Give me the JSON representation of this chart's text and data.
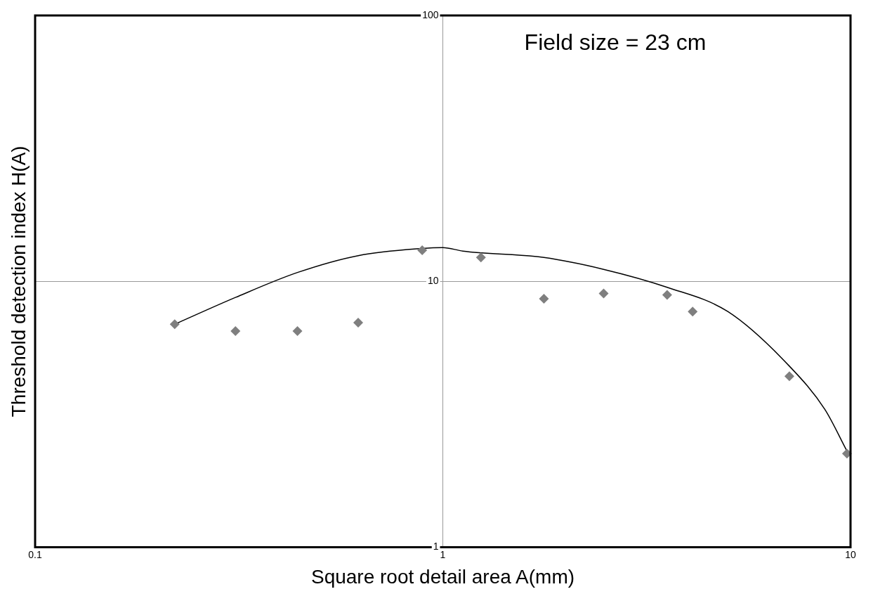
{
  "chart_data": {
    "type": "scatter",
    "xlabel": "Square root detail area A(mm)",
    "ylabel": "Threshold detection index H(A)",
    "annotations": [
      "Field size = 23 cm"
    ],
    "log": "xy",
    "xlim": [
      0.1,
      10
    ],
    "ylim": [
      1,
      100
    ],
    "xticks": [
      0.1,
      1,
      10
    ],
    "yticks": [
      1,
      10,
      100
    ],
    "grid": true,
    "legend": false,
    "marker": "diamond",
    "series": [
      {
        "type": "scatter",
        "color": "#7f7f7f",
        "x": [
          0.22,
          0.31,
          0.44,
          0.62,
          0.89,
          1.24,
          1.77,
          2.48,
          3.55,
          4.1,
          7.08,
          9.8
        ],
        "values": [
          6.9,
          6.5,
          6.5,
          7.0,
          13.1,
          12.3,
          8.6,
          9.0,
          8.9,
          7.7,
          4.4,
          2.25
        ]
      },
      {
        "type": "line",
        "color": "#000000",
        "marker": "none",
        "x": [
          0.22,
          0.31,
          0.44,
          0.62,
          0.89,
          1.0,
          1.12,
          1.77,
          2.48,
          3.55,
          5.0,
          7.08,
          8.65,
          9.8
        ],
        "values": [
          6.9,
          8.7,
          10.8,
          12.5,
          13.3,
          13.4,
          13.0,
          12.3,
          11.1,
          9.5,
          7.7,
          4.8,
          3.3,
          2.3
        ]
      }
    ]
  }
}
